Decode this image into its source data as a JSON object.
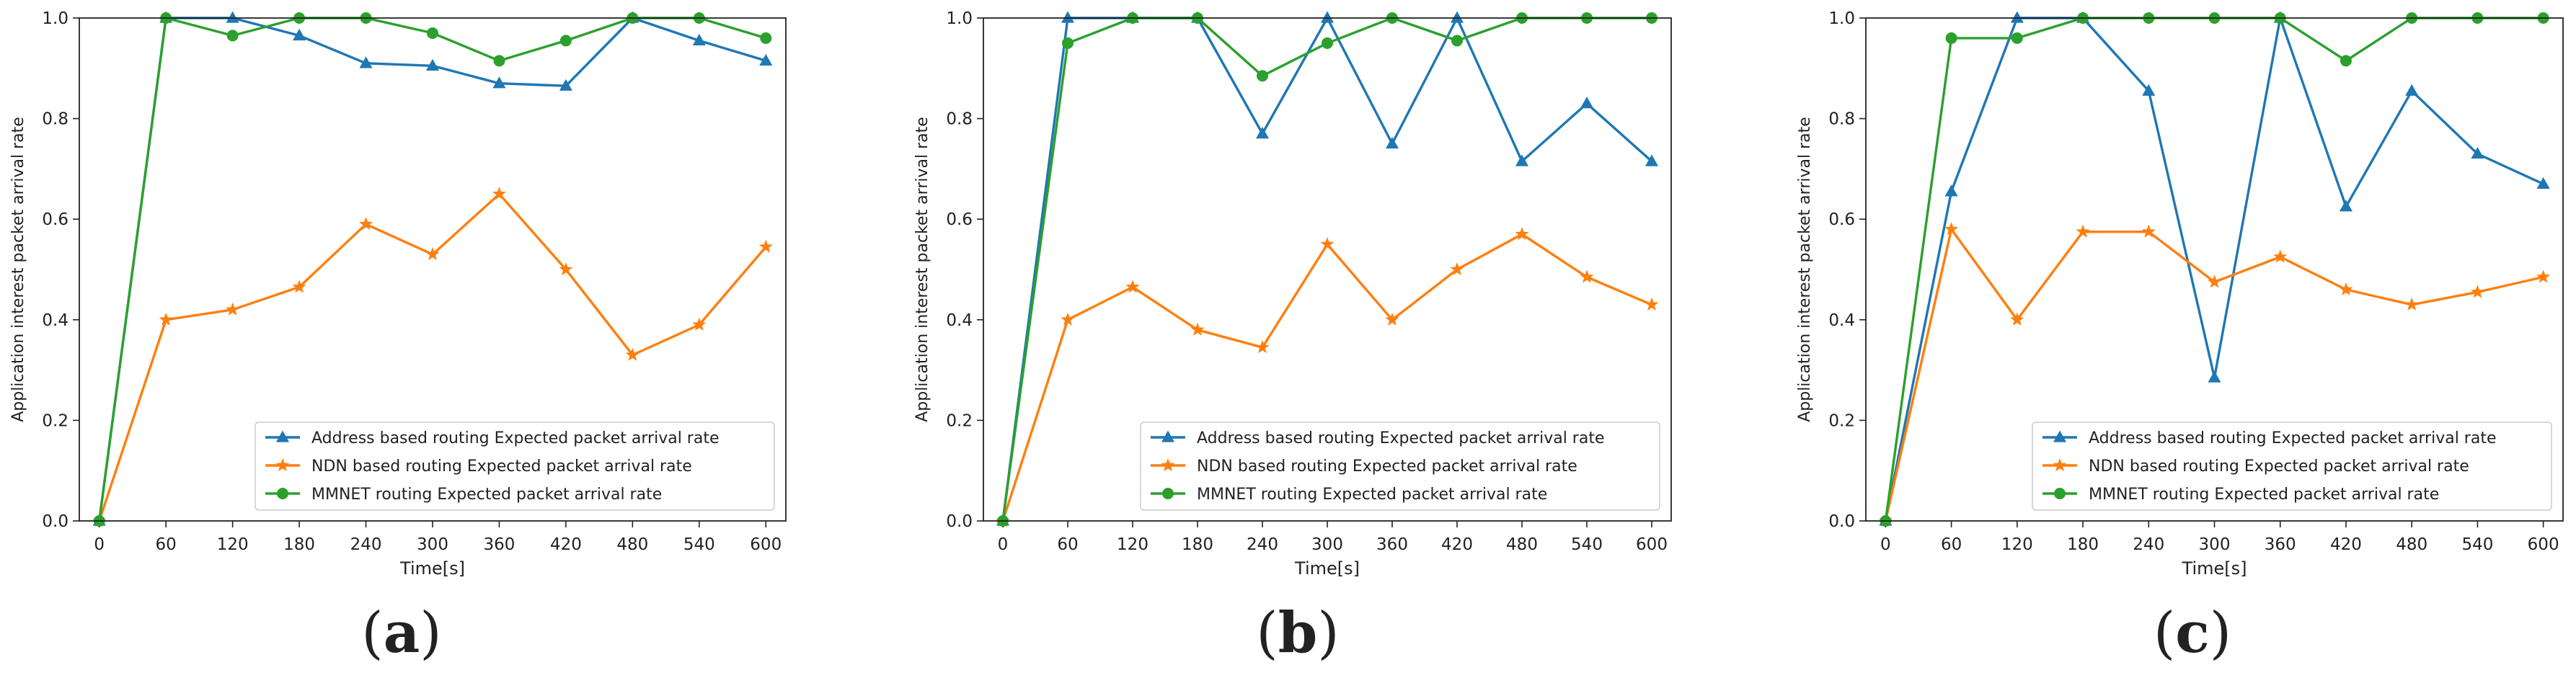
{
  "chart_data": [
    {
      "type": "line",
      "panel": "a",
      "caption_letter": "a",
      "ylabel": "Application interest packet arrival rate",
      "xlabel": "Time[s]",
      "x": [
        0,
        60,
        120,
        180,
        240,
        300,
        360,
        420,
        480,
        540,
        600
      ],
      "x_tick_labels": [
        "0",
        "60",
        "120",
        "180",
        "240",
        "300",
        "360",
        "420",
        "480",
        "540",
        "600"
      ],
      "y_tick_labels": [
        "0.0",
        "0.2",
        "0.4",
        "0.6",
        "0.8",
        "1.0"
      ],
      "xlim": [
        -18,
        618
      ],
      "ylim": [
        0,
        1.0
      ],
      "legend_position": "lower-right",
      "series": [
        {
          "name": "Address based routing Expected packet arrival rate",
          "color": "#1f77b4",
          "marker": "triangle",
          "values": [
            0,
            1.0,
            1.0,
            0.965,
            0.91,
            0.905,
            0.87,
            0.865,
            1.0,
            0.955,
            0.915
          ]
        },
        {
          "name": "NDN based routing Expected packet arrival rate",
          "color": "#ff7f0e",
          "marker": "star",
          "values": [
            0,
            0.4,
            0.42,
            0.465,
            0.59,
            0.53,
            0.65,
            0.5,
            0.33,
            0.39,
            0.545
          ]
        },
        {
          "name": "MMNET routing Expected packet arrival rate",
          "color": "#2ca02c",
          "marker": "circle",
          "values": [
            0,
            1.0,
            0.965,
            1.0,
            1.0,
            0.97,
            0.915,
            0.955,
            1.0,
            1.0,
            0.96
          ]
        }
      ]
    },
    {
      "type": "line",
      "panel": "b",
      "caption_letter": "b",
      "ylabel": "Application interest packet arrival rate",
      "xlabel": "Time[s]",
      "x": [
        0,
        60,
        120,
        180,
        240,
        300,
        360,
        420,
        480,
        540,
        600
      ],
      "x_tick_labels": [
        "0",
        "60",
        "120",
        "180",
        "240",
        "300",
        "360",
        "420",
        "480",
        "540",
        "600"
      ],
      "y_tick_labels": [
        "0.0",
        "0.2",
        "0.4",
        "0.6",
        "0.8",
        "1.0"
      ],
      "xlim": [
        -18,
        618
      ],
      "ylim": [
        0,
        1.0
      ],
      "legend_position": "lower-right",
      "series": [
        {
          "name": "Address based routing Expected packet arrival rate",
          "color": "#1f77b4",
          "marker": "triangle",
          "values": [
            0,
            1.0,
            1.0,
            1.0,
            0.77,
            1.0,
            0.75,
            1.0,
            0.715,
            0.83,
            0.715
          ]
        },
        {
          "name": "NDN based routing Expected packet arrival rate",
          "color": "#ff7f0e",
          "marker": "star",
          "values": [
            0,
            0.4,
            0.465,
            0.38,
            0.345,
            0.55,
            0.4,
            0.5,
            0.57,
            0.485,
            0.43
          ]
        },
        {
          "name": "MMNET routing Expected packet arrival rate",
          "color": "#2ca02c",
          "marker": "circle",
          "values": [
            0,
            0.95,
            1.0,
            1.0,
            0.885,
            0.95,
            1.0,
            0.955,
            1.0,
            1.0,
            1.0
          ]
        }
      ]
    },
    {
      "type": "line",
      "panel": "c",
      "caption_letter": "c",
      "ylabel": "Application interest packet arrival rate",
      "xlabel": "Time[s]",
      "x": [
        0,
        60,
        120,
        180,
        240,
        300,
        360,
        420,
        480,
        540,
        600
      ],
      "x_tick_labels": [
        "0",
        "60",
        "120",
        "180",
        "240",
        "300",
        "360",
        "420",
        "480",
        "540",
        "600"
      ],
      "y_tick_labels": [
        "0.0",
        "0.2",
        "0.4",
        "0.6",
        "0.8",
        "1.0"
      ],
      "xlim": [
        -18,
        618
      ],
      "ylim": [
        0,
        1.0
      ],
      "legend_position": "lower-right",
      "series": [
        {
          "name": "Address based routing Expected packet arrival rate",
          "color": "#1f77b4",
          "marker": "triangle",
          "values": [
            0,
            0.655,
            1.0,
            1.0,
            0.855,
            0.285,
            1.0,
            0.625,
            0.855,
            0.73,
            0.67
          ]
        },
        {
          "name": "NDN based routing Expected packet arrival rate",
          "color": "#ff7f0e",
          "marker": "star",
          "values": [
            0,
            0.58,
            0.4,
            0.575,
            0.575,
            0.475,
            0.525,
            0.46,
            0.43,
            0.455,
            0.485
          ]
        },
        {
          "name": "MMNET routing Expected packet arrival rate",
          "color": "#2ca02c",
          "marker": "circle",
          "values": [
            0,
            0.96,
            0.96,
            1.0,
            1.0,
            1.0,
            1.0,
            0.915,
            1.0,
            1.0,
            1.0
          ]
        }
      ]
    }
  ]
}
